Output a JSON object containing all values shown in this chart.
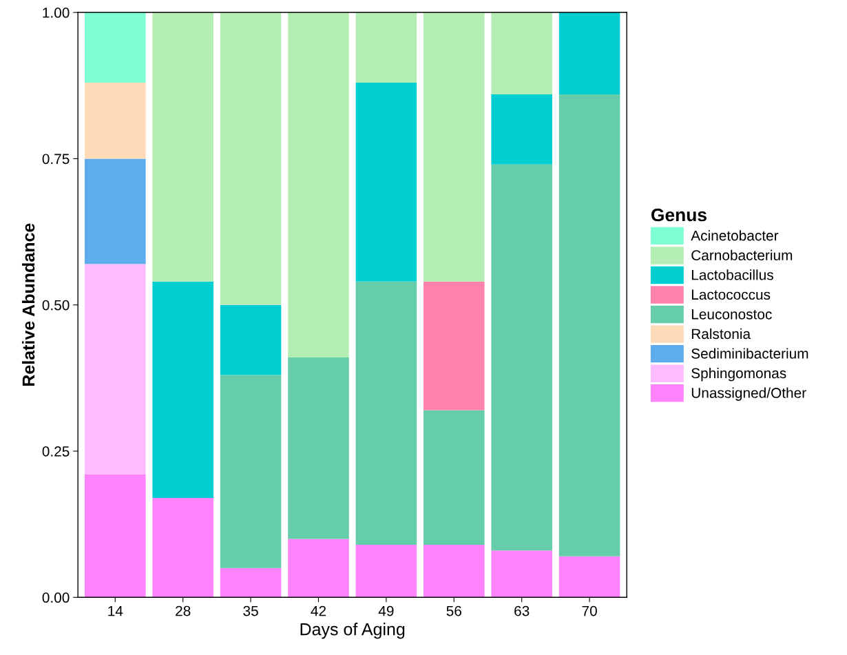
{
  "chart_data": {
    "type": "bar",
    "stacked": true,
    "xlabel": "Days of Aging",
    "ylabel": "Relative Abundance",
    "legend_title": "Genus",
    "legend": "right",
    "grid": false,
    "categories": [
      "14",
      "28",
      "35",
      "42",
      "49",
      "56",
      "63",
      "70"
    ],
    "ylim": [
      0,
      1
    ],
    "yticks": [
      {
        "value": 0,
        "label": "0.00"
      },
      {
        "value": 0.25,
        "label": "0.25"
      },
      {
        "value": 0.5,
        "label": "0.50"
      },
      {
        "value": 0.75,
        "label": "0.75"
      },
      {
        "value": 1,
        "label": "1.00"
      }
    ],
    "series": [
      {
        "name": "Unassigned/Other",
        "color": "#ff83fa",
        "values": [
          0.21,
          0.17,
          0.05,
          0.1,
          0.09,
          0.09,
          0.08,
          0.07
        ]
      },
      {
        "name": "Sphingomonas",
        "color": "#ffbbff",
        "values": [
          0.36,
          null,
          null,
          null,
          null,
          null,
          null,
          null
        ]
      },
      {
        "name": "Sediminibacterium",
        "color": "#5cacee",
        "values": [
          0.18,
          null,
          null,
          null,
          null,
          null,
          null,
          null
        ]
      },
      {
        "name": "Ralstonia",
        "color": "#ffdab9",
        "values": [
          0.13,
          null,
          null,
          null,
          null,
          null,
          null,
          null
        ]
      },
      {
        "name": "Leuconostoc",
        "color": "#66cdaa",
        "values": [
          null,
          null,
          0.33,
          0.31,
          0.45,
          0.23,
          0.66,
          0.79
        ]
      },
      {
        "name": "Lactococcus",
        "color": "#ff82ab",
        "values": [
          null,
          null,
          null,
          null,
          null,
          0.22,
          null,
          null
        ]
      },
      {
        "name": "Lactobacillus",
        "color": "#00ced1",
        "values": [
          null,
          0.37,
          0.12,
          null,
          0.34,
          null,
          0.12,
          0.14
        ]
      },
      {
        "name": "Carnobacterium",
        "color": "#b4eeb4",
        "values": [
          null,
          0.46,
          0.5,
          0.59,
          0.12,
          0.46,
          0.14,
          null
        ]
      },
      {
        "name": "Acinetobacter",
        "color": "#7fffd4",
        "values": [
          0.12,
          null,
          null,
          null,
          null,
          null,
          null,
          null
        ]
      }
    ]
  }
}
